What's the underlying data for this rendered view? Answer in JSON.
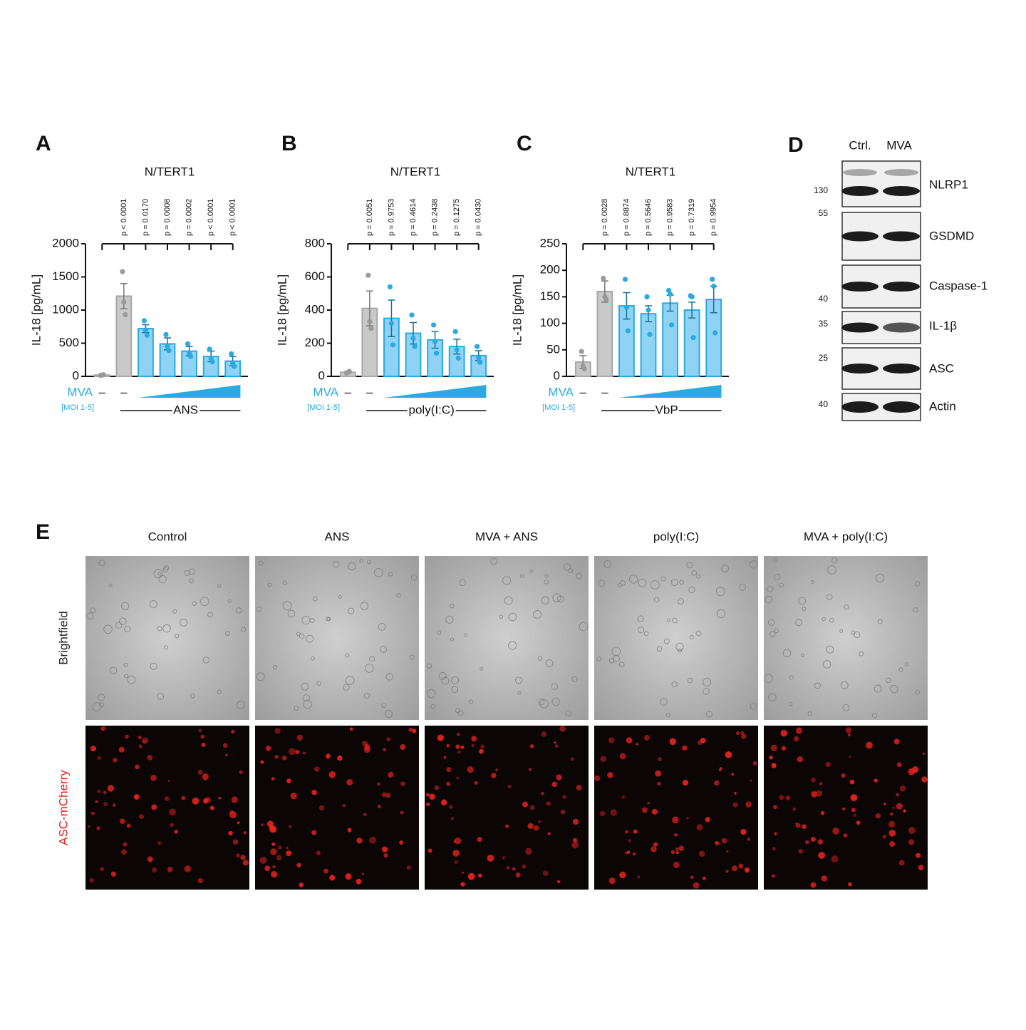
{
  "chart_data": [
    {
      "type": "bar",
      "panel": "A",
      "title": "N/TERT1",
      "ylabel": "IL-18 [pg/mL]",
      "categories": [
        "–",
        "–",
        null,
        null,
        null,
        null,
        null
      ],
      "values": [
        20,
        1210,
        720,
        490,
        380,
        300,
        230
      ],
      "errors": [
        5,
        190,
        60,
        90,
        70,
        80,
        70
      ],
      "points": [
        [
          15,
          20,
          25
        ],
        [
          1580,
          1120,
          930
        ],
        [
          840,
          700,
          620
        ],
        [
          630,
          450,
          390
        ],
        [
          490,
          350,
          300
        ],
        [
          410,
          270,
          220
        ],
        [
          340,
          200,
          150
        ]
      ],
      "colors": [
        "#c9c9c9",
        "#c9c9c9",
        "#8fd3f4",
        "#8fd3f4",
        "#8fd3f4",
        "#8fd3f4",
        "#8fd3f4"
      ],
      "ylim": [
        0,
        2000
      ],
      "yticks": [
        0,
        500,
        1000,
        1500,
        2000
      ],
      "p_values": [
        "p < 0.0001",
        "p = 0.0170",
        "p = 0.0008",
        "p = 0.0002",
        "p < 0.0001",
        "p < 0.0001"
      ],
      "mva_label": "MVA",
      "moi_label": "[MOI 1-5]",
      "treatment": "ANS"
    },
    {
      "type": "bar",
      "panel": "B",
      "title": "N/TERT1",
      "ylabel": "IL-18 [pg/mL]",
      "categories": [
        "–",
        "–",
        null,
        null,
        null,
        null,
        null
      ],
      "values": [
        25,
        410,
        350,
        260,
        220,
        180,
        125
      ],
      "errors": [
        5,
        105,
        110,
        65,
        50,
        45,
        30
      ],
      "points": [
        [
          20,
          25,
          30
        ],
        [
          610,
          330,
          290
        ],
        [
          540,
          320,
          190
        ],
        [
          370,
          230,
          180
        ],
        [
          310,
          210,
          140
        ],
        [
          270,
          160,
          110
        ],
        [
          180,
          110,
          85
        ]
      ],
      "colors": [
        "#c9c9c9",
        "#c9c9c9",
        "#8fd3f4",
        "#8fd3f4",
        "#8fd3f4",
        "#8fd3f4",
        "#8fd3f4"
      ],
      "ylim": [
        0,
        800
      ],
      "yticks": [
        0,
        200,
        400,
        600,
        800
      ],
      "p_values": [
        "p = 0.0051",
        "p = 0.9753",
        "p = 0.4614",
        "p = 0.2438",
        "p = 0.1275",
        "p = 0.0430"
      ],
      "mva_label": "MVA",
      "moi_label": "[MOI 1-5]",
      "treatment": "poly(I:C)"
    },
    {
      "type": "bar",
      "panel": "C",
      "title": "N/TERT1",
      "ylabel": "IL-18 [pg/mL]",
      "categories": [
        "–",
        "–",
        null,
        null,
        null,
        null,
        null
      ],
      "values": [
        27,
        160,
        133,
        118,
        138,
        125,
        145
      ],
      "errors": [
        12,
        20,
        25,
        15,
        15,
        15,
        25
      ],
      "points": [
        [
          47,
          20,
          14
        ],
        [
          185,
          150,
          145
        ],
        [
          183,
          130,
          86
        ],
        [
          150,
          125,
          79
        ],
        [
          162,
          155,
          97
        ],
        [
          152,
          150,
          73
        ],
        [
          183,
          170,
          82
        ]
      ],
      "colors": [
        "#c9c9c9",
        "#c9c9c9",
        "#8fd3f4",
        "#8fd3f4",
        "#8fd3f4",
        "#8fd3f4",
        "#8fd3f4"
      ],
      "ylim": [
        0,
        250
      ],
      "yticks": [
        0,
        50,
        100,
        150,
        200,
        250
      ],
      "p_values": [
        "p = 0.0028",
        "p = 0.8874",
        "p = 0.5646",
        "p = 0.9583",
        "p = 0.7319",
        "p = 0.9954"
      ],
      "mva_label": "MVA",
      "moi_label": "[MOI 1-5]",
      "treatment": "VbP"
    }
  ],
  "blot": {
    "panel": "D",
    "lanes": [
      "Ctrl.",
      "MVA"
    ],
    "rows": [
      {
        "name": "NLRP1",
        "marker": "130"
      },
      {
        "name": "GSDMD",
        "marker": "55"
      },
      {
        "name": "Caspase-1",
        "marker": "40"
      },
      {
        "name": "IL-1β",
        "marker": "35"
      },
      {
        "name": "ASC",
        "marker": "25"
      },
      {
        "name": "Actin",
        "marker": "40"
      }
    ]
  },
  "microscopy": {
    "panel": "E",
    "columns": [
      "Control",
      "ANS",
      "MVA + ANS",
      "poly(I:C)",
      "MVA + poly(I:C)"
    ],
    "rows": [
      "Brightfield",
      "ASC-mCherry"
    ]
  }
}
